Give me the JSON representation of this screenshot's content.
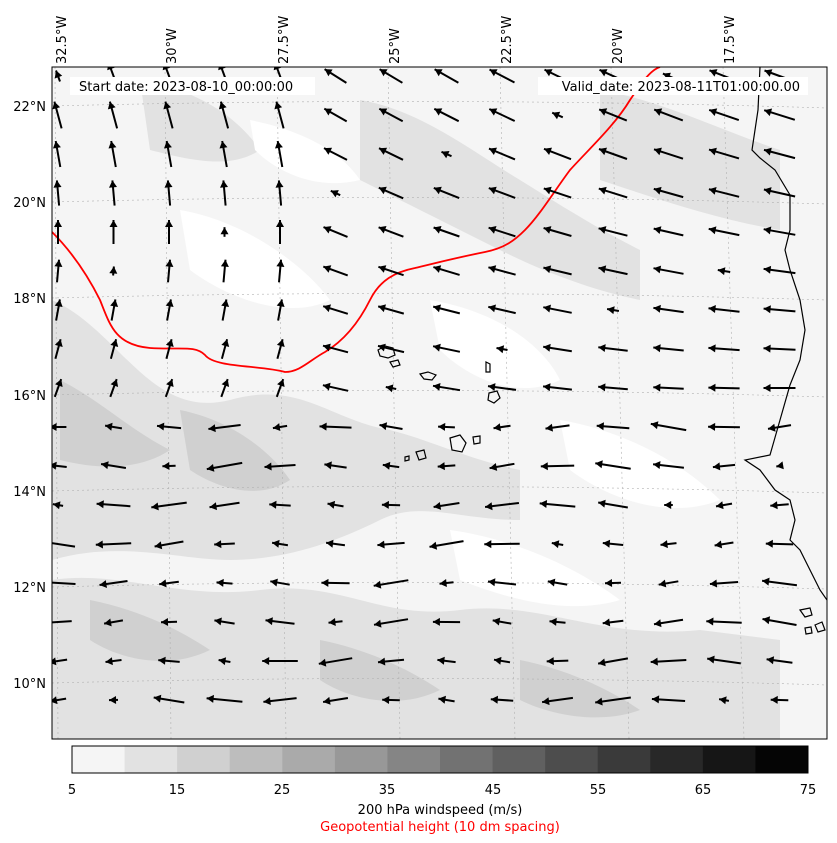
{
  "header": {
    "start_date": "Start date: 2023-08-10_00:00:00",
    "valid_date": "Valid_date: 2023-08-11T01:00:00.00"
  },
  "axes": {
    "lon_labels": [
      "32.5°W",
      "30°W",
      "27.5°W",
      "25°W",
      "22.5°W",
      "20°W",
      "17.5°W"
    ],
    "lat_labels": [
      "22°N",
      "20°N",
      "18°N",
      "16°N",
      "14°N",
      "12°N",
      "10°N"
    ]
  },
  "colorbar": {
    "ticks": [
      "5",
      "15",
      "25",
      "35",
      "45",
      "55",
      "65",
      "75"
    ],
    "colors": [
      "#f5f5f5",
      "#e2e2e2",
      "#d0d0d0",
      "#bdbdbd",
      "#aaaaaa",
      "#989898",
      "#858585",
      "#727272",
      "#606060",
      "#4d4d4d",
      "#3a3a3a",
      "#282828",
      "#161616",
      "#050505"
    ],
    "label": "200 hPa windspeed (m/s)",
    "sublabel": "Geopotential height (10 dm spacing)"
  },
  "colors": {
    "contour": "#ff0000",
    "coast": "#000000",
    "arrow": "#000000"
  }
}
